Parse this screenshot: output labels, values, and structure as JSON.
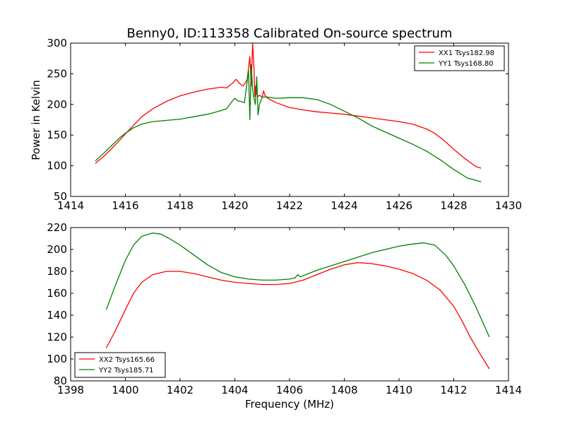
{
  "figure": {
    "title": "Benny0, ID:113358 Calibrated On-source spectrum",
    "xlabel": "Frequency (MHz)"
  },
  "chart_data": [
    {
      "type": "line",
      "title": "Benny0, ID:113358 Calibrated On-source spectrum",
      "xlabel": "",
      "ylabel": "Power in Kelvin",
      "xlim": [
        1414,
        1430
      ],
      "ylim": [
        50,
        300
      ],
      "xticks": [
        1414,
        1416,
        1418,
        1420,
        1422,
        1424,
        1426,
        1428,
        1430
      ],
      "yticks": [
        50,
        100,
        150,
        200,
        250,
        300
      ],
      "grid": false,
      "legend": "top-right",
      "series": [
        {
          "name": "XX1 Tsys182.98",
          "color": "#ff0000",
          "x": [
            1414.9,
            1415.2,
            1415.5,
            1415.8,
            1416.0,
            1416.3,
            1416.6,
            1417.0,
            1417.5,
            1418.0,
            1418.5,
            1419.0,
            1419.5,
            1419.7,
            1419.9,
            1420.05,
            1420.15,
            1420.3,
            1420.45,
            1420.55,
            1420.6,
            1420.65,
            1420.7,
            1420.73,
            1420.76,
            1420.8,
            1420.85,
            1420.9,
            1421.0,
            1421.05,
            1421.1,
            1421.2,
            1421.5,
            1422.0,
            1422.5,
            1423.0,
            1423.5,
            1424.0,
            1424.5,
            1425.0,
            1425.5,
            1426.0,
            1426.5,
            1427.0,
            1427.3,
            1427.6,
            1428.0,
            1428.4,
            1428.8,
            1429.0
          ],
          "y": [
            104,
            115,
            128,
            142,
            152,
            166,
            180,
            193,
            205,
            214,
            220,
            225,
            228,
            227,
            234,
            241,
            235,
            230,
            240,
            278,
            230,
            300,
            260,
            213,
            230,
            218,
            213,
            215,
            212,
            222,
            215,
            210,
            203,
            195,
            191,
            188,
            186,
            184,
            181,
            178,
            175,
            172,
            168,
            160,
            153,
            143,
            127,
            112,
            99,
            96
          ]
        },
        {
          "name": "YY1 Tsys168.80",
          "color": "#008000",
          "x": [
            1414.9,
            1415.2,
            1415.5,
            1415.8,
            1416.0,
            1416.3,
            1416.6,
            1417.0,
            1417.5,
            1418.0,
            1418.5,
            1419.0,
            1419.5,
            1419.7,
            1419.9,
            1420.0,
            1420.1,
            1420.2,
            1420.35,
            1420.5,
            1420.55,
            1420.6,
            1420.65,
            1420.7,
            1420.75,
            1420.8,
            1420.85,
            1420.9,
            1421.0,
            1421.2,
            1421.5,
            1422.0,
            1422.5,
            1423.0,
            1423.5,
            1424.0,
            1424.5,
            1425.0,
            1425.5,
            1426.0,
            1426.5,
            1427.0,
            1427.5,
            1428.0,
            1428.5,
            1429.0
          ],
          "y": [
            108,
            120,
            133,
            146,
            153,
            162,
            168,
            172,
            174,
            176,
            180,
            184,
            190,
            193,
            205,
            210,
            206,
            205,
            203,
            255,
            175,
            265,
            225,
            210,
            200,
            245,
            183,
            200,
            212,
            212,
            210,
            211,
            211,
            208,
            200,
            189,
            178,
            165,
            155,
            145,
            135,
            124,
            110,
            94,
            80,
            74
          ]
        }
      ]
    },
    {
      "type": "line",
      "title": "",
      "xlabel": "Frequency (MHz)",
      "ylabel": "",
      "xlim": [
        1398,
        1414
      ],
      "ylim": [
        80,
        220
      ],
      "xticks": [
        1398,
        1400,
        1402,
        1404,
        1406,
        1408,
        1410,
        1412,
        1414
      ],
      "yticks": [
        80,
        100,
        120,
        140,
        160,
        180,
        200,
        220
      ],
      "grid": false,
      "legend": "bottom-left",
      "series": [
        {
          "name": "XX2 Tsys165.66",
          "color": "#ff0000",
          "x": [
            1399.3,
            1399.6,
            1400.0,
            1400.3,
            1400.6,
            1401.0,
            1401.5,
            1402.0,
            1402.5,
            1403.0,
            1403.5,
            1404.0,
            1404.5,
            1405.0,
            1405.5,
            1406.0,
            1406.5,
            1407.0,
            1407.5,
            1408.0,
            1408.5,
            1409.0,
            1409.5,
            1410.0,
            1410.5,
            1411.0,
            1411.5,
            1412.0,
            1412.3,
            1412.6,
            1413.0,
            1413.3
          ],
          "y": [
            110,
            124,
            145,
            160,
            170,
            177,
            180,
            180,
            178,
            175,
            172,
            170,
            169,
            168,
            168,
            169,
            172,
            177,
            182,
            186,
            188,
            187,
            185,
            182,
            178,
            172,
            163,
            148,
            135,
            120,
            103,
            91
          ]
        },
        {
          "name": "YY2 Tsys185.71",
          "color": "#008000",
          "x": [
            1399.3,
            1399.6,
            1400.0,
            1400.3,
            1400.6,
            1401.0,
            1401.3,
            1401.6,
            1402.0,
            1402.5,
            1403.0,
            1403.5,
            1404.0,
            1404.5,
            1405.0,
            1405.5,
            1406.0,
            1406.2,
            1406.3,
            1406.4,
            1406.6,
            1407.0,
            1407.5,
            1408.0,
            1408.5,
            1409.0,
            1409.5,
            1410.0,
            1410.5,
            1410.9,
            1411.3,
            1411.7,
            1412.0,
            1412.4,
            1412.8,
            1413.3
          ],
          "y": [
            145,
            165,
            190,
            204,
            212,
            215,
            214,
            210,
            204,
            195,
            186,
            179,
            175,
            173,
            172,
            172,
            173,
            174,
            177,
            175,
            177,
            181,
            185,
            189,
            193,
            197,
            200,
            203,
            205,
            206,
            204,
            195,
            185,
            168,
            148,
            120
          ]
        }
      ]
    }
  ]
}
